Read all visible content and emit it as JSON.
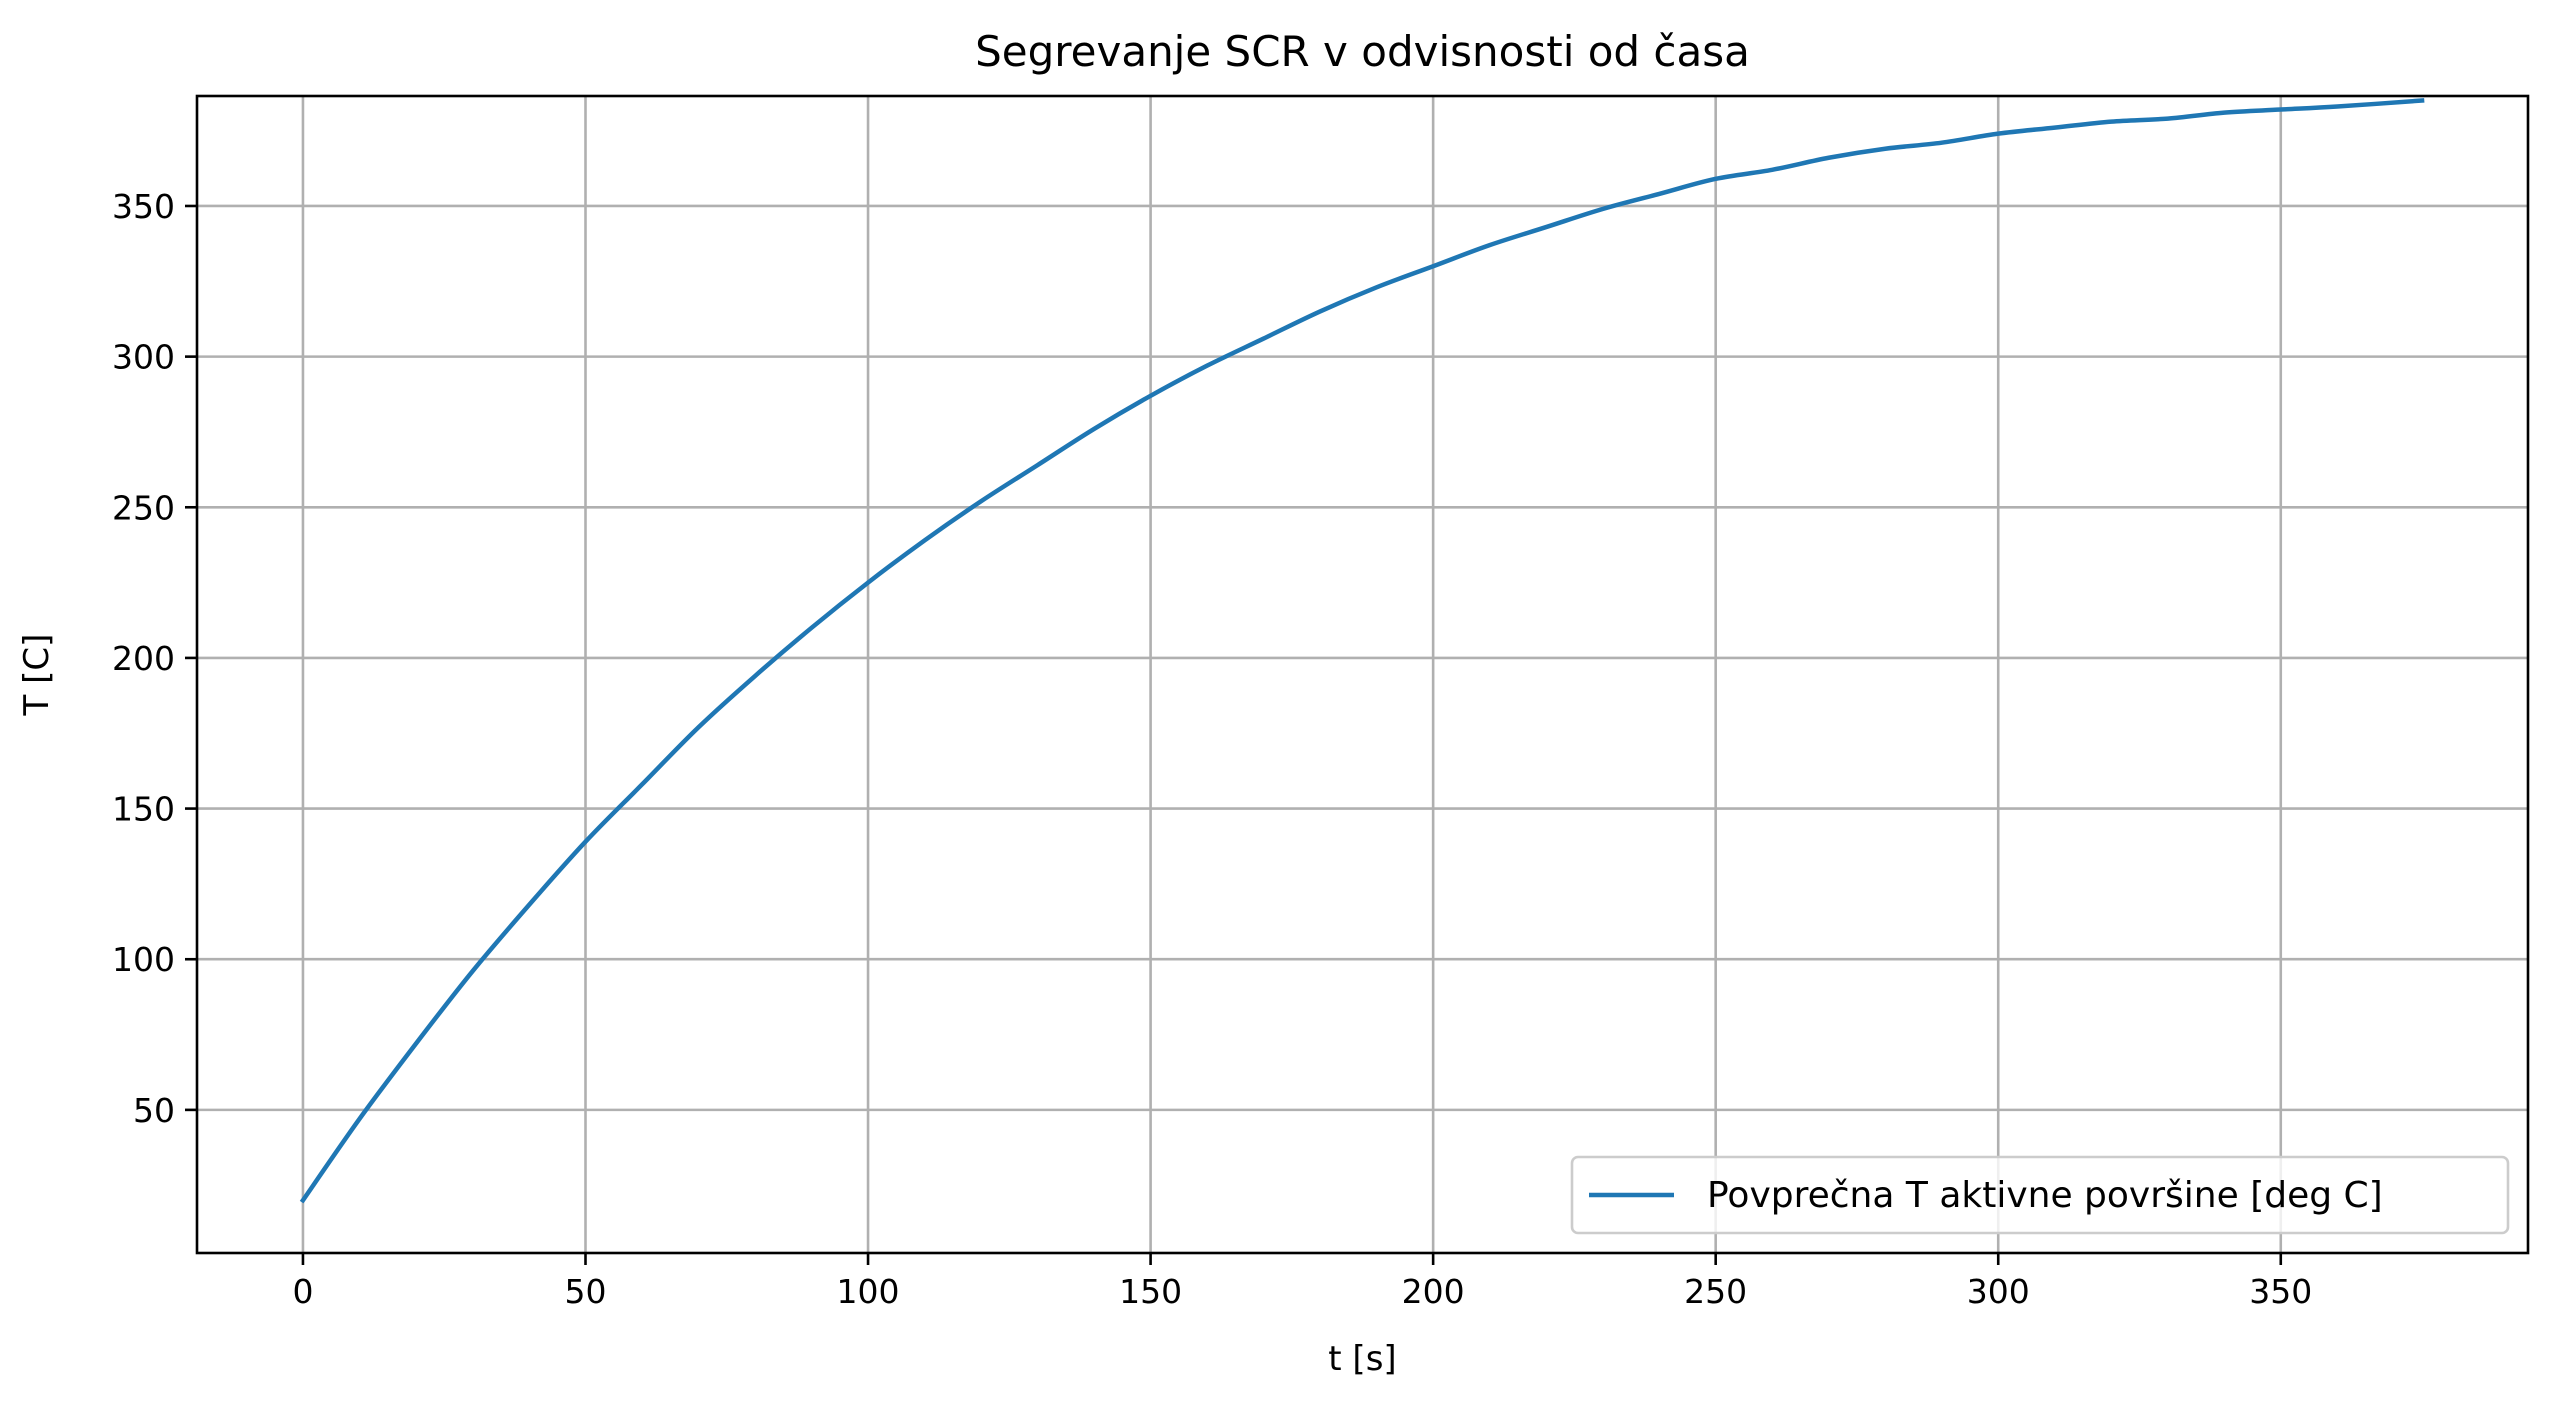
{
  "chart_data": {
    "type": "line",
    "title": "Segrevanje SCR v odvisnosti od časa",
    "xlabel": "t [s]",
    "ylabel": "T [C]",
    "xlim": [
      -18.75,
      393.75
    ],
    "ylim": [
      2.5,
      386.5
    ],
    "xticks": [
      0,
      50,
      100,
      150,
      200,
      250,
      300,
      350
    ],
    "yticks": [
      50,
      100,
      150,
      200,
      250,
      300,
      350
    ],
    "grid": true,
    "legend_position": "lower-right",
    "colors": {
      "series": "#1f77b4",
      "grid": "#b0b0b0",
      "axes": "#000000"
    },
    "series": [
      {
        "name": "Povprečna T aktivne površine [deg C]",
        "x": [
          0,
          10,
          20,
          30,
          40,
          50,
          60,
          70,
          80,
          90,
          100,
          110,
          120,
          130,
          140,
          150,
          160,
          170,
          180,
          190,
          200,
          210,
          220,
          230,
          240,
          250,
          260,
          270,
          280,
          290,
          300,
          310,
          320,
          330,
          340,
          350,
          360,
          375
        ],
        "y": [
          20,
          47,
          72,
          96,
          118,
          139,
          158,
          177,
          194,
          210,
          225,
          239,
          252,
          264,
          276,
          287,
          297,
          306,
          315,
          323,
          330,
          337,
          343,
          349,
          354,
          359,
          362,
          366,
          369,
          371,
          374,
          376,
          378,
          379,
          381,
          382,
          383,
          385
        ]
      }
    ]
  }
}
